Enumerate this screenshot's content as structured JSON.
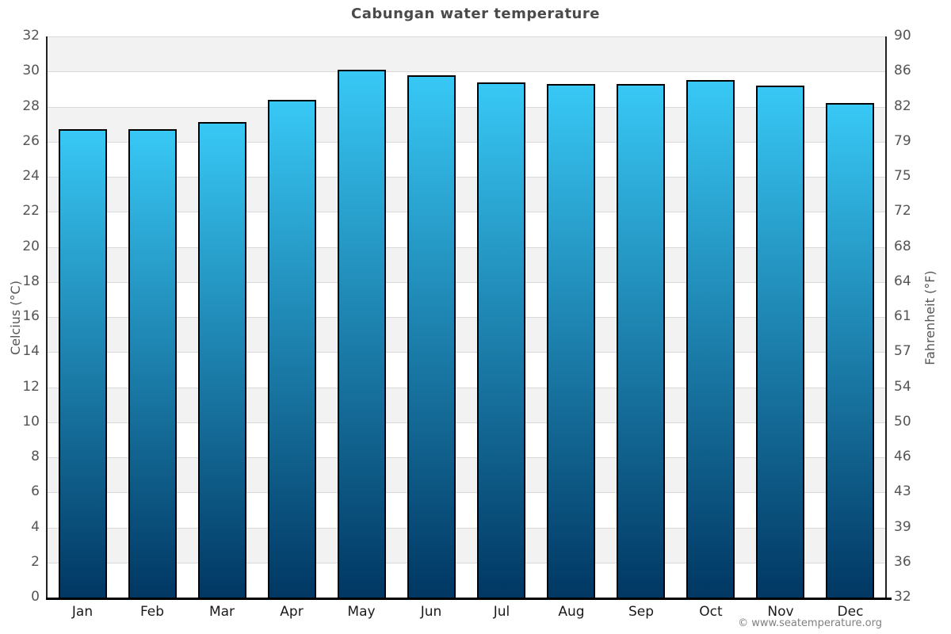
{
  "page": {
    "title": "Cabungan water temperature",
    "copyright": "© www.seatemperature.org"
  },
  "chart_data": {
    "type": "bar",
    "title": "Cabungan water temperature",
    "categories": [
      "Jan",
      "Feb",
      "Mar",
      "Apr",
      "May",
      "Jun",
      "Jul",
      "Aug",
      "Sep",
      "Oct",
      "Nov",
      "Dec"
    ],
    "values": [
      26.7,
      26.7,
      27.1,
      28.4,
      30.1,
      29.8,
      29.4,
      29.3,
      29.3,
      29.5,
      29.2,
      28.2
    ],
    "unit": "°C",
    "ylabel_left": "Celcius (°C)",
    "ylabel_right": "Fahrenheit (°F)",
    "ylim": [
      0,
      32
    ],
    "ytick_step": 2,
    "celsius_ticks": [
      0,
      2,
      4,
      6,
      8,
      10,
      12,
      14,
      16,
      18,
      20,
      22,
      24,
      26,
      28,
      30,
      32
    ],
    "fahrenheit_ticks": [
      "32",
      "36",
      "39",
      "43",
      "46",
      "50",
      "54",
      "57",
      "61",
      "64",
      "68",
      "72",
      "75",
      "79",
      "82",
      "86",
      "90"
    ],
    "grid": true,
    "legend": false,
    "plot_bands": "alternating gray bands every 2°C (2-4, 6-8, ... 30-32 gray)",
    "colors": {
      "bar_top": "#38c8f5",
      "bar_bottom": "#013763",
      "bar_border": "#000000",
      "band_gray": "#f2f2f2",
      "gridline": "#d9d9d9",
      "axis_line": "#222222",
      "baseline": "#000000",
      "title_text": "#4a4a4a",
      "tick_text": "#555555",
      "month_text": "#1a1a1a",
      "copyright_text": "#808080"
    }
  }
}
